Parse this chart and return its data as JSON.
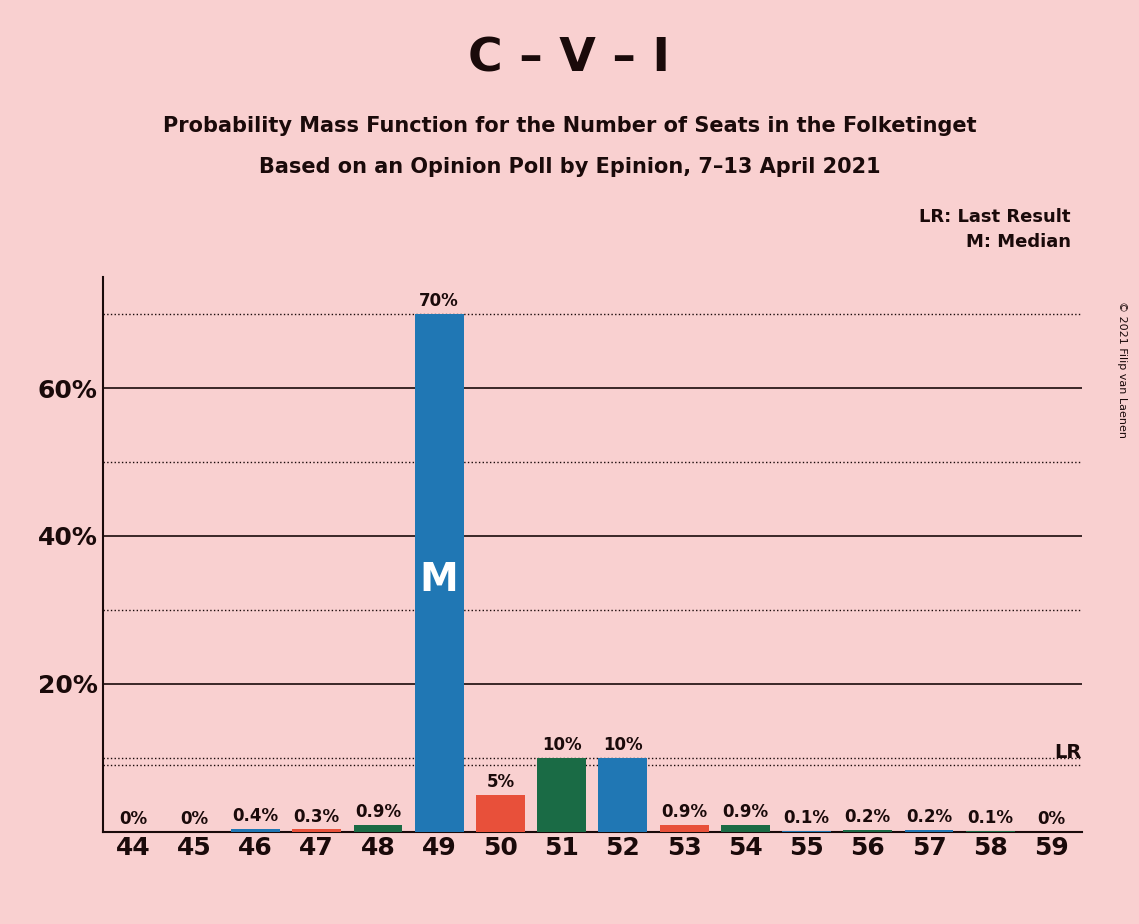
{
  "title": "C – V – I",
  "subtitle1": "Probability Mass Function for the Number of Seats in the Folketinget",
  "subtitle2": "Based on an Opinion Poll by Epinion, 7–13 April 2021",
  "copyright": "© 2021 Filip van Laenen",
  "categories": [
    44,
    45,
    46,
    47,
    48,
    49,
    50,
    51,
    52,
    53,
    54,
    55,
    56,
    57,
    58,
    59
  ],
  "values": [
    0.0,
    0.0,
    0.4,
    0.3,
    0.9,
    70.0,
    5.0,
    10.0,
    10.0,
    0.9,
    0.9,
    0.1,
    0.2,
    0.2,
    0.1,
    0.0
  ],
  "bar_colors_by_seat": {
    "44": "#2077B4",
    "45": "#2077B4",
    "46": "#2077B4",
    "47": "#E8503A",
    "48": "#1A6B45",
    "49": "#2077B4",
    "50": "#E8503A",
    "51": "#1A6B45",
    "52": "#2077B4",
    "53": "#E8503A",
    "54": "#1A6B45",
    "55": "#2077B4",
    "56": "#1A6B45",
    "57": "#2077B4",
    "58": "#1A6B45",
    "59": "#2077B4"
  },
  "median_bar": 49,
  "lr_value": 9.0,
  "background_color": "#F9D0D0",
  "ylim": [
    0,
    75
  ],
  "solid_yticks": [
    20,
    40,
    60
  ],
  "dotted_yticks": [
    10,
    30,
    50,
    70
  ],
  "legend_lr": "LR: Last Result",
  "legend_m": "M: Median"
}
